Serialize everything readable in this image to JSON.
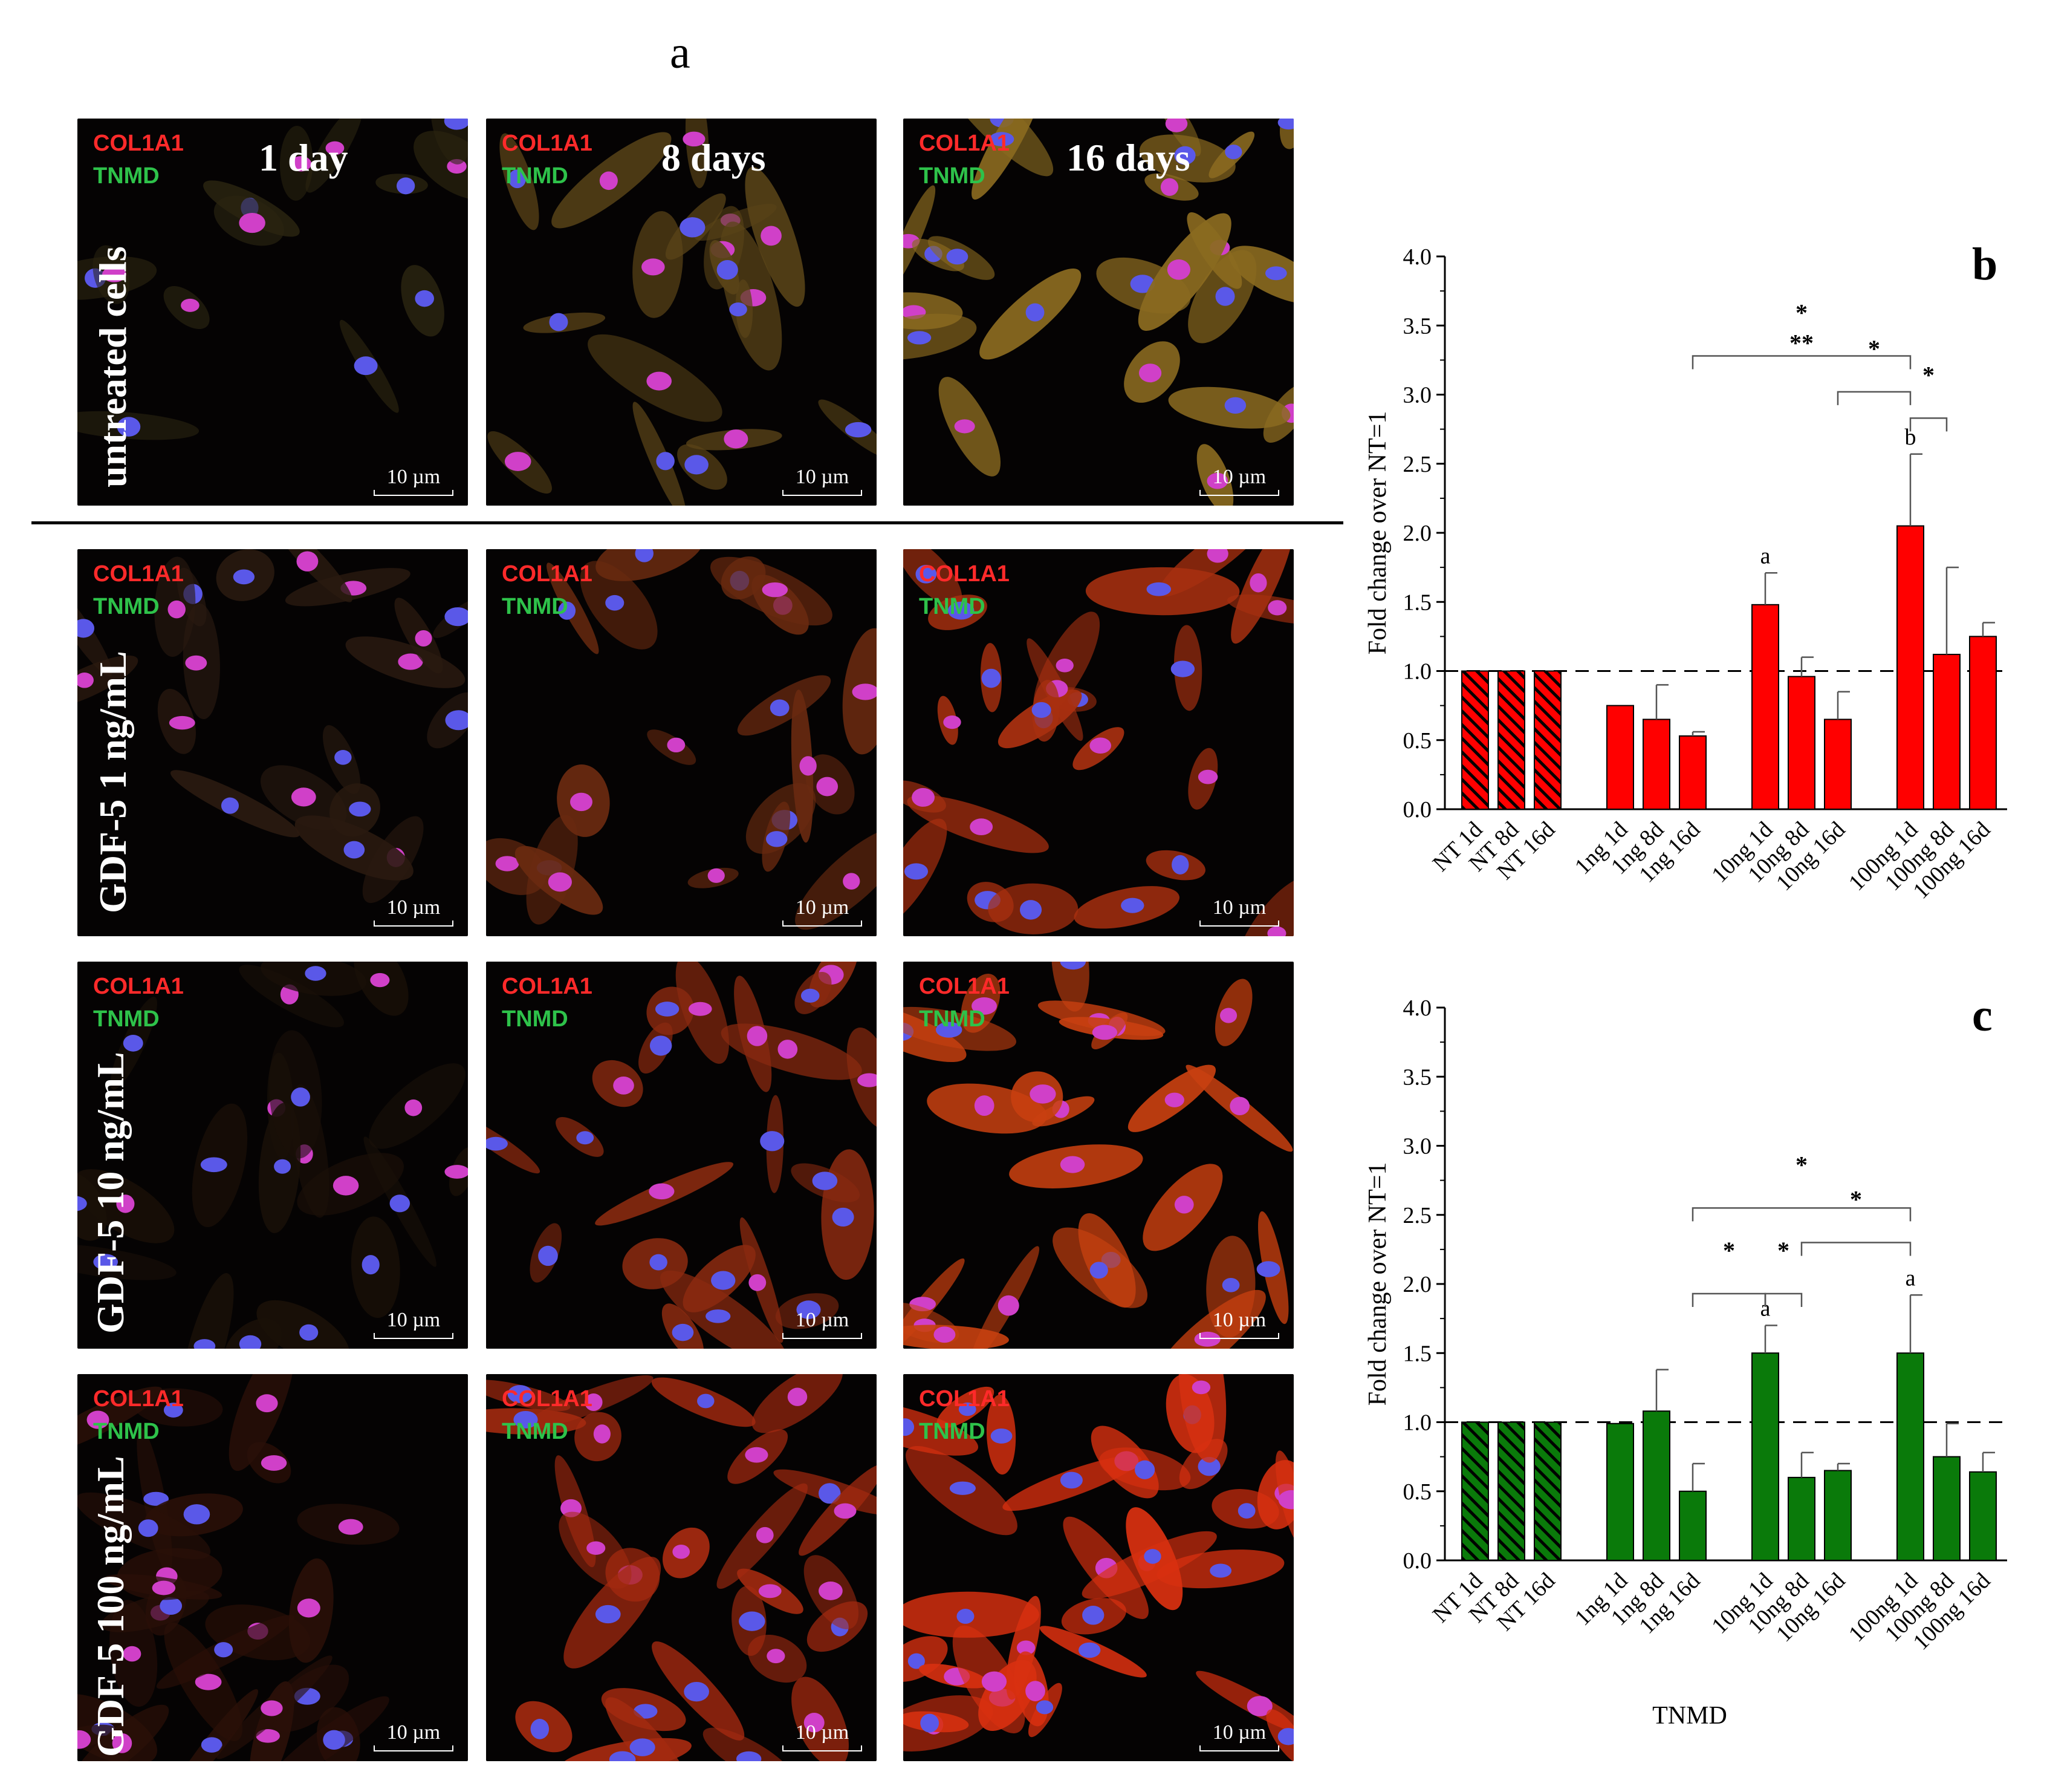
{
  "figure": {
    "panel_a": "a",
    "panel_b": "b",
    "panel_c": "c"
  },
  "micrographs": {
    "stain_red": "COL1A1",
    "stain_green": "TNMD",
    "scale_bar": "10 µm",
    "columns": [
      "1 day",
      "8 days",
      "16 days"
    ],
    "rows": [
      "untreated cells",
      "GDF-5 1 ng/mL",
      "GDF-5 10 ng/mL",
      "GDF-5 100 ng/mL"
    ]
  },
  "chart_data": [
    {
      "type": "bar",
      "panel": "b",
      "title": "",
      "ylabel": "Fold change over NT=1",
      "xlabel": "",
      "ylim": [
        0,
        4
      ],
      "yticks": [
        "0.0",
        "0.5",
        "1.0",
        "1.5",
        "2.0",
        "2.5",
        "3.0",
        "3.5",
        "4.0"
      ],
      "reference_line": 1.0,
      "categories": [
        "NT 1d",
        "NT 8d",
        "NT 16d",
        "1ng 1d",
        "1ng 8d",
        "1ng 16d",
        "10ng 1d",
        "10ng 8d",
        "10ng 16d",
        "100ng 1d",
        "100ng 8d",
        "100ng 16d"
      ],
      "values": [
        1.0,
        1.0,
        1.0,
        0.75,
        0.65,
        0.53,
        1.48,
        0.96,
        0.65,
        2.05,
        1.12,
        1.25
      ],
      "errors": [
        0,
        0,
        0,
        0,
        0.25,
        0.03,
        0.23,
        0.14,
        0.2,
        0.52,
        0.63,
        0.1
      ],
      "hatched": [
        true,
        true,
        true,
        false,
        false,
        false,
        false,
        false,
        false,
        false,
        false,
        false
      ],
      "color": "#ff0000",
      "letters": [
        {
          "index": 6,
          "text": "a"
        },
        {
          "index": 9,
          "text": "b"
        }
      ],
      "significance": [
        {
          "from": 5,
          "to": 9,
          "y": 3.28,
          "text": "*"
        },
        {
          "from": 5,
          "to": 9,
          "y": 3.28,
          "text": "**"
        },
        {
          "from": 8,
          "to": 9,
          "y": 3.02,
          "text": "*"
        },
        {
          "from": 9,
          "to": 10,
          "y": 2.83,
          "text": "*"
        }
      ]
    },
    {
      "type": "bar",
      "panel": "c",
      "title": "",
      "ylabel": "Fold change over NT=1",
      "xlabel": "TNMD",
      "ylim": [
        0,
        4
      ],
      "yticks": [
        "0.0",
        "0.5",
        "1.0",
        "1.5",
        "2.0",
        "2.5",
        "3.0",
        "3.5",
        "4.0"
      ],
      "reference_line": 1.0,
      "categories": [
        "NT 1d",
        "NT 8d",
        "NT 16d",
        "1ng 1d",
        "1ng 8d",
        "1ng 16d",
        "10ng 1d",
        "10ng 8d",
        "10ng 16d",
        "100ng 1d",
        "100ng 8d",
        "100ng 16d"
      ],
      "values": [
        1.0,
        1.0,
        1.0,
        0.99,
        1.08,
        0.5,
        1.5,
        0.6,
        0.65,
        1.5,
        0.75,
        0.64
      ],
      "errors": [
        0,
        0,
        0,
        0,
        0.3,
        0.2,
        0.2,
        0.18,
        0.05,
        0.42,
        0.24,
        0.14
      ],
      "hatched": [
        true,
        true,
        true,
        false,
        false,
        false,
        false,
        false,
        false,
        false,
        false,
        false
      ],
      "color": "#0a7a0a",
      "letters": [
        {
          "index": 6,
          "text": "a"
        },
        {
          "index": 9,
          "text": "a"
        }
      ],
      "significance": [
        {
          "from": 5,
          "to": 9,
          "y": 2.55,
          "text": "*"
        },
        {
          "from": 7,
          "to": 9,
          "y": 2.3,
          "text": "*"
        },
        {
          "from": 5,
          "to": 6,
          "y": 1.93,
          "text": "*"
        },
        {
          "from": 6,
          "to": 7,
          "y": 1.93,
          "text": "*"
        }
      ]
    }
  ]
}
